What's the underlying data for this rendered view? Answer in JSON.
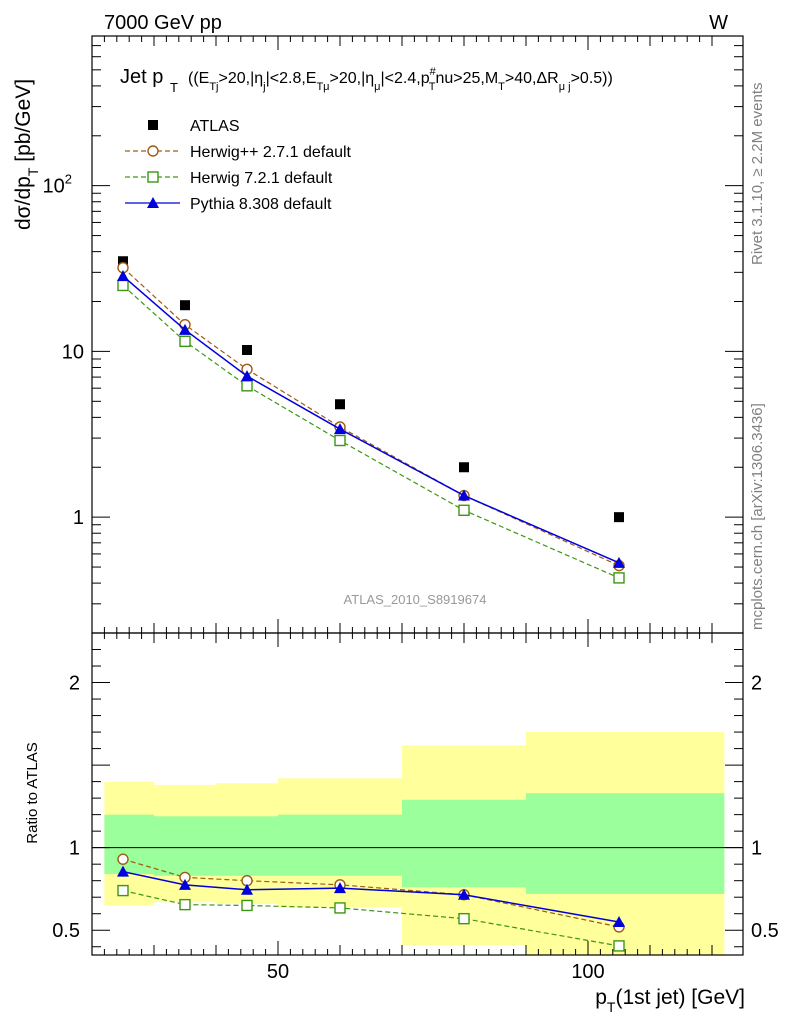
{
  "header": {
    "energy_label": "7000 GeV pp",
    "process_label": "W"
  },
  "side_labels": {
    "rivet": "Rivet 3.1.10, ≥ 2.2M events",
    "source": "mcplots.cern.ch [arXiv:1306.3436]"
  },
  "chart_data": [
    {
      "type": "scatter",
      "panel": "main",
      "title_main": "Jet p",
      "title_sub": "T",
      "title_cuts": "((E",
      "title_cuts_full": "((E_Tj>20,|η_j|<2.8,E_Tμ>20,|η_μ|<2.4,p_T^#nu>25,M_T>40,ΔR_μ j>0.5))",
      "ylabel": "dσ/dp_T [pb/GeV]",
      "xlabel": "p_T(1st jet) [GeV]",
      "yscale": "log",
      "ylim": [
        0.2,
        800
      ],
      "xlim": [
        20,
        125
      ],
      "yticks": [
        {
          "v": 1,
          "label": "1"
        },
        {
          "v": 10,
          "label": "10"
        },
        {
          "v": 100,
          "label": "10",
          "sup": "2"
        }
      ],
      "watermark": "ATLAS_2010_S8919674",
      "legend_position": "top-left",
      "series": [
        {
          "name": "ATLAS",
          "style": "data",
          "color": "#000000",
          "x": [
            25,
            35,
            45,
            60,
            80,
            105
          ],
          "y": [
            35,
            19,
            10.2,
            4.8,
            2.0,
            1.0
          ]
        },
        {
          "name": "Herwig++ 2.7.1 default",
          "style": "circle",
          "color": "#a05a14",
          "x": [
            25,
            35,
            45,
            60,
            80,
            105
          ],
          "y": [
            32,
            14.5,
            7.8,
            3.5,
            1.35,
            0.51
          ]
        },
        {
          "name": "Herwig 7.2.1 default",
          "style": "square",
          "color": "#3c9614",
          "x": [
            25,
            35,
            45,
            60,
            80,
            105
          ],
          "y": [
            25,
            11.5,
            6.2,
            2.9,
            1.1,
            0.43
          ]
        },
        {
          "name": "Pythia 8.308 default",
          "style": "triangle",
          "color": "#0000dc",
          "x": [
            25,
            35,
            45,
            60,
            80,
            105
          ],
          "y": [
            28.5,
            13.5,
            7.1,
            3.4,
            1.35,
            0.53
          ]
        }
      ]
    },
    {
      "type": "line",
      "panel": "ratio",
      "ylabel": "Ratio to ATLAS",
      "ylim": [
        0.35,
        2.3
      ],
      "xlim": [
        20,
        125
      ],
      "yticks": [
        0.5,
        1,
        2
      ],
      "xticks": [
        50,
        100
      ],
      "bands": {
        "x_edges": [
          22,
          30,
          40,
          50,
          70,
          90,
          122
        ],
        "inner_low": [
          0.84,
          0.83,
          0.83,
          0.83,
          0.76,
          0.72
        ],
        "inner_high": [
          1.2,
          1.19,
          1.19,
          1.2,
          1.29,
          1.33
        ],
        "outer_low": [
          0.65,
          0.67,
          0.66,
          0.64,
          0.41,
          0.35
        ],
        "outer_high": [
          1.4,
          1.38,
          1.39,
          1.42,
          1.62,
          1.7
        ],
        "inner_color": "#9bff9b",
        "outer_color": "#ffff9b"
      },
      "series": [
        {
          "name": "Herwig++ 2.7.1 default",
          "style": "circle",
          "color": "#a05a14",
          "x": [
            25,
            35,
            45,
            60,
            80,
            105
          ],
          "y": [
            0.93,
            0.82,
            0.8,
            0.775,
            0.715,
            0.52
          ]
        },
        {
          "name": "Herwig 7.2.1 default",
          "style": "square",
          "color": "#3c9614",
          "x": [
            25,
            35,
            45,
            60,
            80,
            105
          ],
          "y": [
            0.74,
            0.655,
            0.65,
            0.635,
            0.57,
            0.405
          ]
        },
        {
          "name": "Pythia 8.308 default",
          "style": "triangle",
          "color": "#0000dc",
          "x": [
            25,
            35,
            45,
            60,
            80,
            105
          ],
          "y": [
            0.855,
            0.775,
            0.745,
            0.755,
            0.715,
            0.55
          ]
        }
      ]
    }
  ]
}
